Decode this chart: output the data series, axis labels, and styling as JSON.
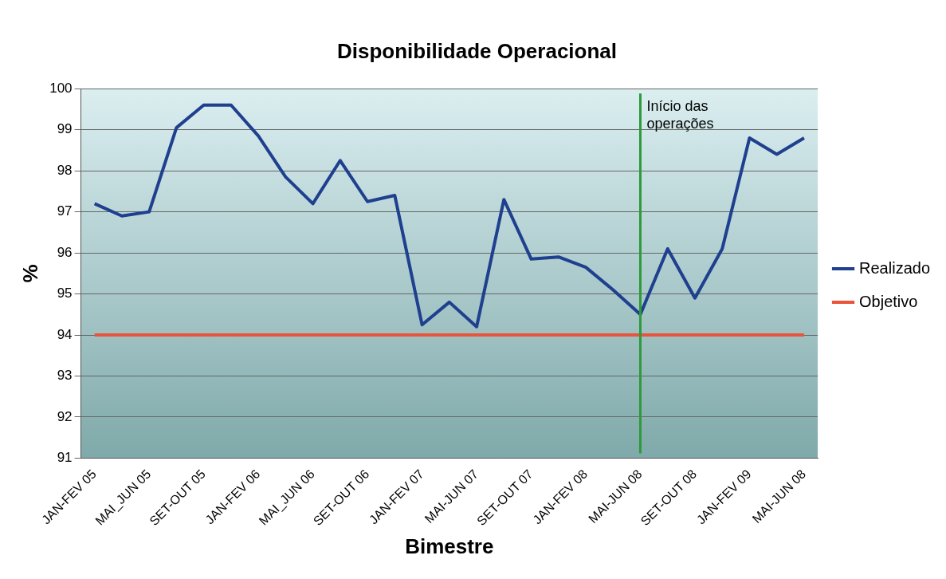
{
  "chart_data": {
    "type": "line",
    "title": "Disponibilidade Operacional",
    "xlabel": "Bimestre",
    "ylabel": "%",
    "categories": [
      "JAN-FEV 05",
      null,
      "MAI_JUN 05",
      null,
      "SET-OUT 05",
      null,
      "JAN-FEV 06",
      null,
      "MAI_JUN 06",
      null,
      "SET-OUT 06",
      null,
      "JAN-FEV 07",
      null,
      "MAI-JUN 07",
      null,
      "SET-OUT 07",
      null,
      "JAN-FEV 08",
      null,
      "MAI-JUN 08",
      null,
      "SET-OUT 08",
      null,
      "JAN-FEV 09",
      null,
      "MAI-JUN 08"
    ],
    "series": [
      {
        "name": "Realizado",
        "color": "#1f3f8f",
        "values": [
          97.2,
          96.9,
          97.0,
          99.05,
          99.6,
          99.6,
          98.85,
          97.85,
          97.2,
          98.25,
          97.25,
          97.4,
          94.25,
          94.8,
          94.2,
          97.3,
          95.85,
          95.9,
          95.65,
          95.1,
          94.5,
          96.1,
          94.9,
          96.1,
          98.8,
          98.4,
          98.8
        ]
      },
      {
        "name": "Objetivo",
        "color": "#e8553a",
        "values": [
          94,
          94,
          94,
          94,
          94,
          94,
          94,
          94,
          94,
          94,
          94,
          94,
          94,
          94,
          94,
          94,
          94,
          94,
          94,
          94,
          94,
          94,
          94,
          94,
          94,
          94,
          94
        ]
      }
    ],
    "ref_lines": [
      {
        "axis": "x",
        "value": "MAI-JUN 08",
        "label": "Início das operações",
        "color": "#2e9a3a"
      }
    ],
    "ylim": [
      91,
      100
    ],
    "yticks": [
      91,
      92,
      93,
      94,
      95,
      96,
      97,
      98,
      99,
      100
    ],
    "grid": "y",
    "legend": "right",
    "marker": "none",
    "line_style": "solid"
  }
}
